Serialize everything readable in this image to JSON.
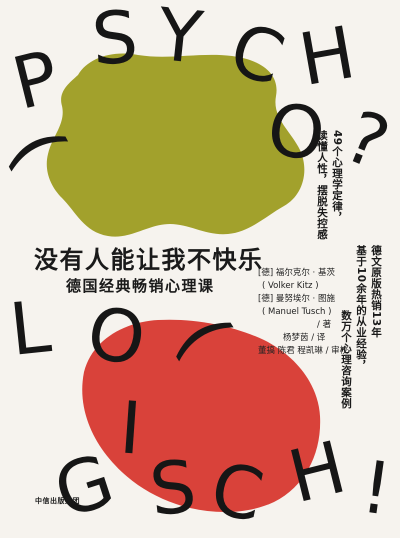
{
  "cover": {
    "title": "没有人能让我不快乐",
    "subtitle": "德国经典畅销心理课",
    "tagline_line1": "49个心理学定律，",
    "tagline_line2": "读懂人性，摆脱失控感",
    "promo_line1": "德文原版热销13年",
    "promo_line2": "基于10余年的从业经验，",
    "promo_line3": "数万个心理咨询案例",
    "author1_cn": "[德] 福尔克尔 · 基茨",
    "author1_en": "( Volker Kitz )",
    "author2_cn": "[德] 曼努埃尔 · 图施",
    "author2_en": "( Manuel Tusch )",
    "author_role": "/ 著",
    "translator": "杨梦茵 / 译",
    "reviewers": "董搞  陈君  程凯琳 / 审校",
    "publisher": "中信出版集团"
  },
  "word_psycho": [
    "P",
    "S",
    "Y",
    "C",
    "H",
    "O",
    "?",
    "("
  ],
  "word_logisch": [
    "L",
    "O",
    "(",
    "G",
    "I",
    "S",
    "C",
    "H",
    "!"
  ],
  "colors": {
    "background": "#f6f3ee",
    "olive_blob": "#a2a12c",
    "red_blob": "#d9423a",
    "text": "#1a1a1a"
  }
}
